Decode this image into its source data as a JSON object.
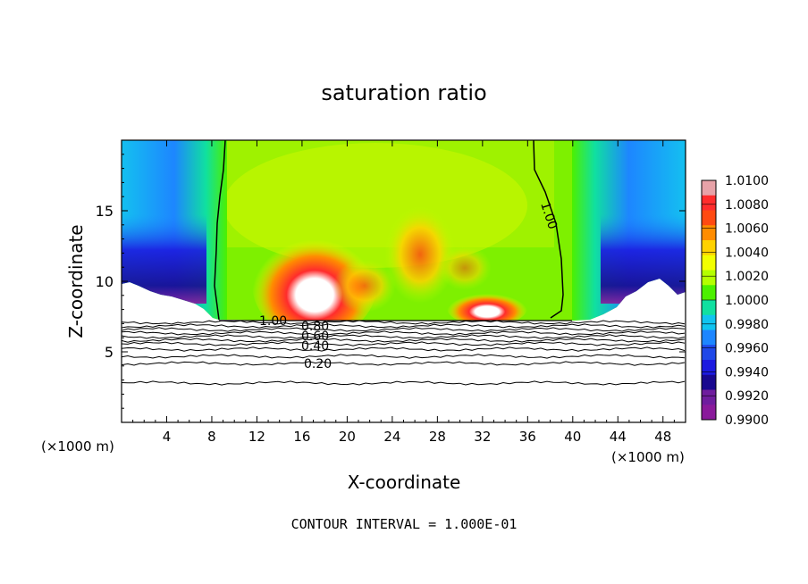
{
  "chart_data": {
    "type": "heatmap",
    "title": "saturation ratio",
    "xlabel": "X-coordinate",
    "ylabel": "Z-coordinate",
    "x_unit": "(×1000 m)",
    "y_unit": "(×1000 m)",
    "xlim": [
      0,
      50
    ],
    "ylim": [
      0,
      20
    ],
    "x_ticks": [
      4,
      8,
      12,
      16,
      20,
      24,
      28,
      32,
      36,
      40,
      44,
      48
    ],
    "y_ticks": [
      5,
      10,
      15
    ],
    "colorbar": {
      "labels": [
        "1.0100",
        "1.0080",
        "1.0060",
        "1.0040",
        "1.0020",
        "1.0000",
        "0.9980",
        "0.9960",
        "0.9940",
        "0.9920",
        "0.9900"
      ],
      "colors": [
        "#e7a2a8",
        "#ff2c2c",
        "#ff4a12",
        "#ff8c00",
        "#ffd200",
        "#f2ff00",
        "#b4ff00",
        "#4cf000",
        "#10e0a0",
        "#10c4f0",
        "#1d86ff",
        "#1f48e8",
        "#1c1ae0",
        "#18088f",
        "#6f1d9e",
        "#8a1a9b"
      ]
    },
    "contour_interval": "CONTOUR INTERVAL = 1.000E-01",
    "contour_labels": [
      "1.00",
      "0.80",
      "0.60",
      "0.40",
      "0.20",
      "1.00"
    ]
  }
}
